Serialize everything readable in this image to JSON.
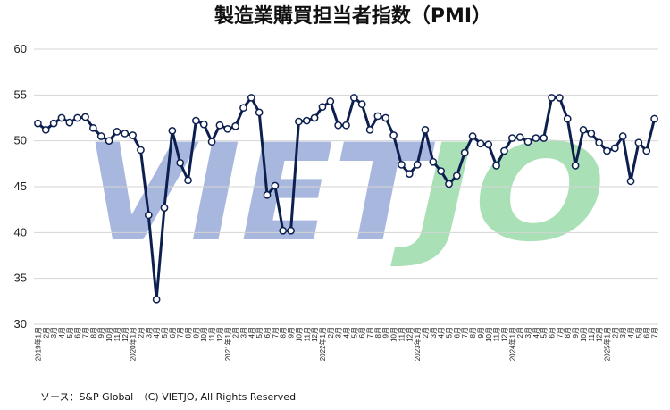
{
  "chart_data": {
    "type": "line",
    "title": "製造業購買担当者指数（PMI）",
    "xlabel": "",
    "ylabel": "",
    "ylim": [
      30,
      60
    ],
    "yticks": [
      30,
      35,
      40,
      45,
      50,
      55,
      60
    ],
    "grid": true,
    "legend": "none",
    "x": [
      "2019年1月",
      "2月",
      "3月",
      "4月",
      "5月",
      "6月",
      "7月",
      "8月",
      "9月",
      "10月",
      "11月",
      "12月",
      "2020年1月",
      "2月",
      "3月",
      "4月",
      "5月",
      "6月",
      "7月",
      "8月",
      "9月",
      "10月",
      "11月",
      "12月",
      "2021年1月",
      "2月",
      "3月",
      "4月",
      "5月",
      "6月",
      "7月",
      "8月",
      "9月",
      "10月",
      "11月",
      "12月",
      "2022年1月",
      "2月",
      "3月",
      "4月",
      "5月",
      "6月",
      "7月",
      "8月",
      "9月",
      "10月",
      "11月",
      "12月",
      "2023年1月",
      "2月",
      "3月",
      "4月",
      "5月",
      "6月",
      "7月",
      "8月",
      "9月",
      "10月",
      "11月",
      "12月",
      "2024年1月",
      "2月",
      "3月",
      "4月",
      "5月",
      "6月",
      "7月",
      "8月",
      "9月",
      "10月",
      "11月",
      "12月",
      "2025年1月",
      "2月",
      "3月",
      "4月",
      "5月",
      "6月",
      "7月"
    ],
    "series": [
      {
        "values": [
          51.9,
          51.2,
          51.9,
          52.5,
          52.0,
          52.5,
          52.6,
          51.4,
          50.5,
          50.0,
          51.0,
          50.8,
          50.6,
          49.0,
          41.9,
          32.7,
          42.7,
          51.1,
          47.6,
          45.7,
          52.2,
          51.8,
          49.9,
          51.7,
          51.3,
          51.6,
          53.6,
          54.7,
          53.1,
          44.1,
          45.1,
          40.2,
          40.2,
          52.1,
          52.2,
          52.5,
          53.7,
          54.3,
          51.7,
          51.7,
          54.7,
          54.0,
          51.2,
          52.7,
          52.5,
          50.6,
          47.4,
          46.4,
          47.4,
          51.2,
          47.7,
          46.7,
          45.3,
          46.2,
          48.7,
          50.5,
          49.7,
          49.6,
          47.3,
          48.9,
          50.3,
          50.4,
          49.9,
          50.3,
          50.3,
          54.7,
          54.7,
          52.4,
          47.3,
          51.2,
          50.8,
          49.8,
          48.9,
          49.2,
          50.5,
          45.6,
          49.8,
          48.9,
          52.4
        ]
      }
    ],
    "colors": {
      "line": "#0c1f4f",
      "marker_fill": "#ffffff",
      "grid": "#d4d4d4"
    }
  },
  "watermark": {
    "part1": "VIET",
    "part2": "JO",
    "color1": "#8c9fd2",
    "color2": "#8ed69e"
  },
  "footer": {
    "source": "ソース：S&P Global　（C) VIETJO, All Rights Reserved"
  }
}
